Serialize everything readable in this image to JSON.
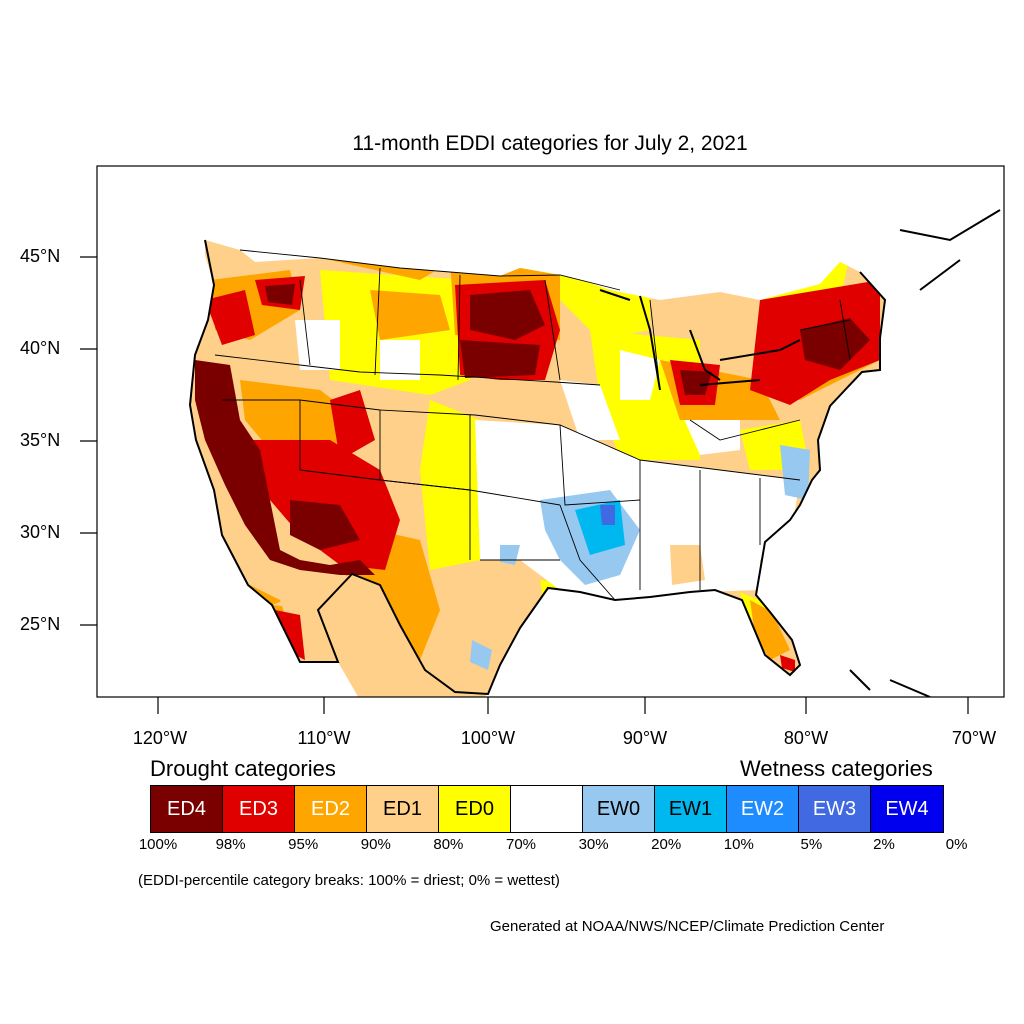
{
  "title": "11-month EDDI categories for July 2, 2021",
  "latitude_labels": [
    "45°N",
    "40°N",
    "35°N",
    "30°N",
    "25°N"
  ],
  "longitude_labels": [
    "120°W",
    "110°W",
    "100°W",
    "90°W",
    "80°W",
    "70°W"
  ],
  "drought_heading": "Drought categories",
  "wetness_heading": "Wetness categories",
  "categories": [
    {
      "label": "ED4",
      "color": "#7a0000",
      "text_color": "#ffffff"
    },
    {
      "label": "ED3",
      "color": "#e00000",
      "text_color": "#ffffff"
    },
    {
      "label": "ED2",
      "color": "#ffa500",
      "text_color": "#ffffff"
    },
    {
      "label": "ED1",
      "color": "#ffd08a",
      "text_color": "#000000"
    },
    {
      "label": "ED0",
      "color": "#ffff00",
      "text_color": "#000000"
    },
    {
      "label": "",
      "color": "#ffffff",
      "text_color": "#000000"
    },
    {
      "label": "EW0",
      "color": "#96c8f0",
      "text_color": "#000000"
    },
    {
      "label": "EW1",
      "color": "#00b8f0",
      "text_color": "#000000"
    },
    {
      "label": "EW2",
      "color": "#1e8cff",
      "text_color": "#ffffff"
    },
    {
      "label": "EW3",
      "color": "#4169e1",
      "text_color": "#ffffff"
    },
    {
      "label": "EW4",
      "color": "#0000ee",
      "text_color": "#ffffff"
    }
  ],
  "percentile_breaks": [
    "100%",
    "98%",
    "95%",
    "90%",
    "80%",
    "70%",
    "30%",
    "20%",
    "10%",
    "5%",
    "2%",
    "0%"
  ],
  "note": "(EDDI-percentile category breaks: 100% = driest; 0% = wettest)",
  "credit": "Generated at NOAA/NWS/NCEP/Climate Prediction Center"
}
